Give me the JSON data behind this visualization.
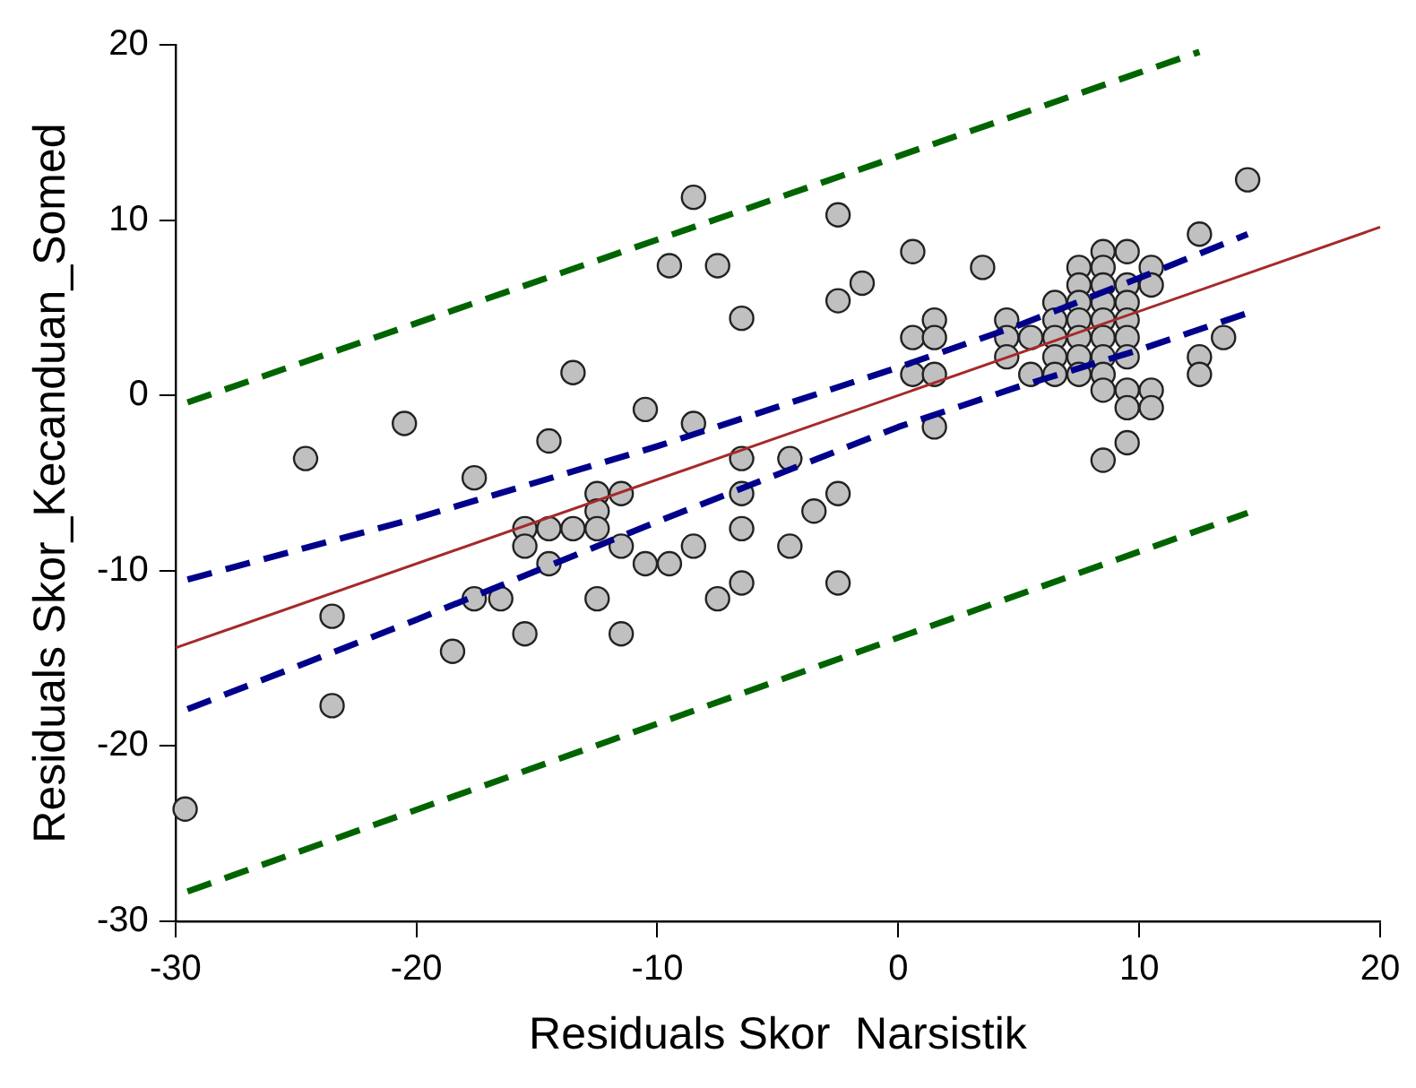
{
  "chart_data": {
    "type": "scatter",
    "xlabel": "Residuals Skor  Narsistik",
    "ylabel": "Residuals Skor_Kecanduan_Somed",
    "xlim": [
      -30,
      20
    ],
    "ylim": [
      -30,
      20
    ],
    "xticks": [
      -30,
      -20,
      -10,
      0,
      10,
      20
    ],
    "yticks": [
      -30,
      -20,
      -10,
      0,
      10,
      20
    ],
    "grid": false,
    "legend": false,
    "marker": "circle",
    "series": [
      {
        "type": "scatter",
        "color": "#c0c0c0",
        "x": [
          -29.6,
          -24.6,
          -23.5,
          -23.5,
          -20.5,
          -17.6,
          -17.6,
          -16.5,
          -18.5,
          -15.5,
          -15.5,
          -15.5,
          -14.5,
          -14.5,
          -14.5,
          -13.5,
          -13.5,
          -12.5,
          -12.5,
          -12.5,
          -12.5,
          -11.5,
          -11.5,
          -11.5,
          -10.5,
          -10.5,
          -9.5,
          -9.5,
          -8.5,
          -8.5,
          -8.5,
          -7.5,
          -7.5,
          -6.5,
          -6.5,
          -6.5,
          -6.5,
          -6.5,
          -4.5,
          -4.5,
          -3.5,
          -2.5,
          -2.5,
          -2.5,
          -2.5,
          -1.5,
          0.6,
          0.6,
          0.6,
          1.5,
          1.5,
          1.5,
          1.5,
          3.5,
          4.5,
          4.5,
          4.5,
          5.5,
          5.5,
          6.5,
          6.5,
          6.5,
          6.5,
          6.5,
          7.5,
          7.5,
          7.5,
          7.5,
          7.5,
          7.5,
          7.5,
          8.5,
          8.5,
          8.5,
          8.5,
          8.5,
          8.5,
          8.5,
          8.5,
          8.5,
          8.5,
          9.5,
          9.5,
          9.5,
          9.5,
          9.5,
          9.5,
          9.5,
          9.5,
          9.5,
          10.5,
          10.5,
          10.5,
          10.5,
          12.5,
          12.5,
          12.5,
          13.5,
          14.5
        ],
        "values": [
          -23.6,
          -3.6,
          -12.6,
          -17.7,
          -1.6,
          -4.7,
          -11.6,
          -11.6,
          -14.6,
          -7.6,
          -8.6,
          -13.6,
          -2.6,
          -7.6,
          -9.6,
          1.3,
          -7.6,
          -5.6,
          -6.6,
          -7.6,
          -11.6,
          -5.6,
          -8.6,
          -13.6,
          -0.8,
          -9.6,
          7.4,
          -9.6,
          11.3,
          -1.6,
          -8.6,
          7.4,
          -11.6,
          4.4,
          -3.6,
          -5.6,
          -7.6,
          -10.7,
          -8.6,
          -3.6,
          -6.6,
          10.3,
          5.4,
          -5.6,
          -10.7,
          6.4,
          8.2,
          3.3,
          1.2,
          4.3,
          3.3,
          1.2,
          -1.8,
          7.3,
          4.3,
          3.3,
          2.2,
          3.3,
          1.2,
          5.3,
          4.3,
          3.3,
          2.2,
          1.2,
          7.3,
          6.3,
          5.3,
          4.3,
          3.3,
          2.2,
          1.2,
          8.2,
          7.3,
          6.3,
          5.3,
          4.3,
          3.3,
          2.2,
          1.2,
          0.3,
          -3.7,
          8.2,
          6.3,
          5.3,
          4.3,
          3.3,
          2.2,
          0.3,
          -0.7,
          -2.7,
          7.3,
          6.3,
          0.3,
          -0.7,
          9.2,
          2.2,
          1.2,
          3.3,
          12.3
        ]
      },
      {
        "type": "line",
        "color": "#a52a2a",
        "marker": "none",
        "line_style": "solid",
        "x": [
          -30,
          20
        ],
        "values": [
          -14.4,
          9.6
        ]
      },
      {
        "type": "line",
        "color": "#00008b",
        "marker": "none",
        "line_style": "dashed",
        "x": [
          -29.5,
          -20,
          -10,
          0,
          5,
          10,
          14.5
        ],
        "values": [
          -10.5,
          -7.0,
          -2.9,
          1.6,
          4.0,
          6.7,
          9.2
        ]
      },
      {
        "type": "line",
        "color": "#00008b",
        "marker": "none",
        "line_style": "dashed",
        "x": [
          -29.5,
          -20,
          -10,
          0,
          5,
          10,
          14.5
        ],
        "values": [
          -17.9,
          -12.8,
          -7.2,
          -1.8,
          0.5,
          2.6,
          4.7
        ]
      },
      {
        "type": "line",
        "color": "#006400",
        "marker": "none",
        "line_style": "dashed",
        "x": [
          -29.5,
          12.5
        ],
        "values": [
          -0.4,
          19.6
        ]
      },
      {
        "type": "line",
        "color": "#006400",
        "marker": "none",
        "line_style": "dashed",
        "x": [
          -29.5,
          14.5
        ],
        "values": [
          -28.3,
          -6.7
        ]
      }
    ]
  }
}
